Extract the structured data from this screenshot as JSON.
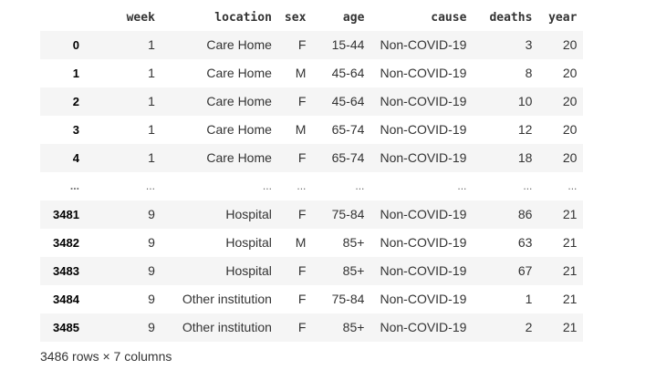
{
  "dataframe": {
    "index_header": "",
    "columns": [
      "week",
      "location",
      "sex",
      "age",
      "cause",
      "deaths",
      "year"
    ],
    "rows": [
      {
        "index": "0",
        "cells": [
          "1",
          "Care Home",
          "F",
          "15-44",
          "Non-COVID-19",
          "3",
          "20"
        ]
      },
      {
        "index": "1",
        "cells": [
          "1",
          "Care Home",
          "M",
          "45-64",
          "Non-COVID-19",
          "8",
          "20"
        ]
      },
      {
        "index": "2",
        "cells": [
          "1",
          "Care Home",
          "F",
          "45-64",
          "Non-COVID-19",
          "10",
          "20"
        ]
      },
      {
        "index": "3",
        "cells": [
          "1",
          "Care Home",
          "M",
          "65-74",
          "Non-COVID-19",
          "12",
          "20"
        ]
      },
      {
        "index": "4",
        "cells": [
          "1",
          "Care Home",
          "F",
          "65-74",
          "Non-COVID-19",
          "18",
          "20"
        ]
      },
      {
        "index": "...",
        "cells": [
          "...",
          "...",
          "...",
          "...",
          "...",
          "...",
          "..."
        ]
      },
      {
        "index": "3481",
        "cells": [
          "9",
          "Hospital",
          "F",
          "75-84",
          "Non-COVID-19",
          "86",
          "21"
        ]
      },
      {
        "index": "3482",
        "cells": [
          "9",
          "Hospital",
          "M",
          "85+",
          "Non-COVID-19",
          "63",
          "21"
        ]
      },
      {
        "index": "3483",
        "cells": [
          "9",
          "Hospital",
          "F",
          "85+",
          "Non-COVID-19",
          "67",
          "21"
        ]
      },
      {
        "index": "3484",
        "cells": [
          "9",
          "Other institution",
          "F",
          "75-84",
          "Non-COVID-19",
          "1",
          "21"
        ]
      },
      {
        "index": "3485",
        "cells": [
          "9",
          "Other institution",
          "F",
          "85+",
          "Non-COVID-19",
          "2",
          "21"
        ]
      }
    ],
    "footer": "3486 rows × 7 columns"
  },
  "colors": {
    "stripe": "#f5f5f5",
    "text": "#333333",
    "index_text": "#000000"
  }
}
